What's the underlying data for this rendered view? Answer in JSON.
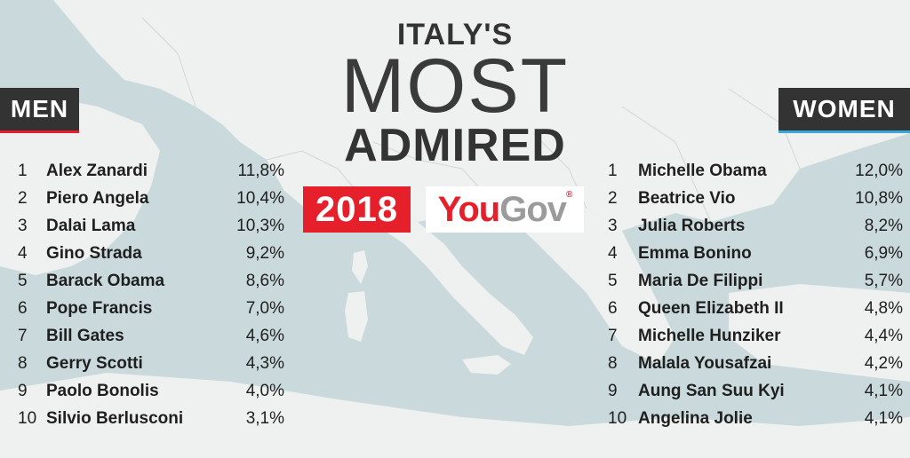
{
  "title": {
    "line1": "ITALY'S",
    "line2": "MOST",
    "line3": "ADMIRED"
  },
  "year": "2018",
  "brand": {
    "you": "You",
    "gov": "Gov",
    "reg": "®"
  },
  "men": {
    "label": "MEN",
    "rows": [
      {
        "rank": "1",
        "name": "Alex Zanardi",
        "pct": "11,8%"
      },
      {
        "rank": "2",
        "name": "Piero Angela",
        "pct": "10,4%"
      },
      {
        "rank": "3",
        "name": "Dalai Lama",
        "pct": "10,3%"
      },
      {
        "rank": "4",
        "name": "Gino Strada",
        "pct": "9,2%"
      },
      {
        "rank": "5",
        "name": "Barack Obama",
        "pct": "8,6%"
      },
      {
        "rank": "6",
        "name": "Pope Francis",
        "pct": "7,0%"
      },
      {
        "rank": "7",
        "name": "Bill Gates",
        "pct": "4,6%"
      },
      {
        "rank": "8",
        "name": "Gerry Scotti",
        "pct": "4,3%"
      },
      {
        "rank": "9",
        "name": "Paolo Bonolis",
        "pct": "4,0%"
      },
      {
        "rank": "10",
        "name": "Silvio Berlusconi",
        "pct": "3,1%"
      }
    ]
  },
  "women": {
    "label": "WOMEN",
    "rows": [
      {
        "rank": "1",
        "name": "Michelle Obama",
        "pct": "12,0%"
      },
      {
        "rank": "2",
        "name": "Beatrice Vio",
        "pct": "10,8%"
      },
      {
        "rank": "3",
        "name": "Julia Roberts",
        "pct": "8,2%"
      },
      {
        "rank": "4",
        "name": "Emma Bonino",
        "pct": "6,9%"
      },
      {
        "rank": "5",
        "name": "Maria De Filippi",
        "pct": "5,7%"
      },
      {
        "rank": "6",
        "name": "Queen Elizabeth II",
        "pct": "4,8%"
      },
      {
        "rank": "7",
        "name": "Michelle Hunziker",
        "pct": "4,4%"
      },
      {
        "rank": "8",
        "name": "Malala Yousafzai",
        "pct": "4,2%"
      },
      {
        "rank": "9",
        "name": "Aung San Suu Kyi",
        "pct": "4,1%"
      },
      {
        "rank": "10",
        "name": "Angelina Jolie",
        "pct": "4,1%"
      }
    ]
  },
  "colors": {
    "accent_red": "#e5202b",
    "accent_blue": "#3ba7d8",
    "dark": "#333333",
    "sea": "#c9d9dc",
    "land": "#eef1ef"
  }
}
